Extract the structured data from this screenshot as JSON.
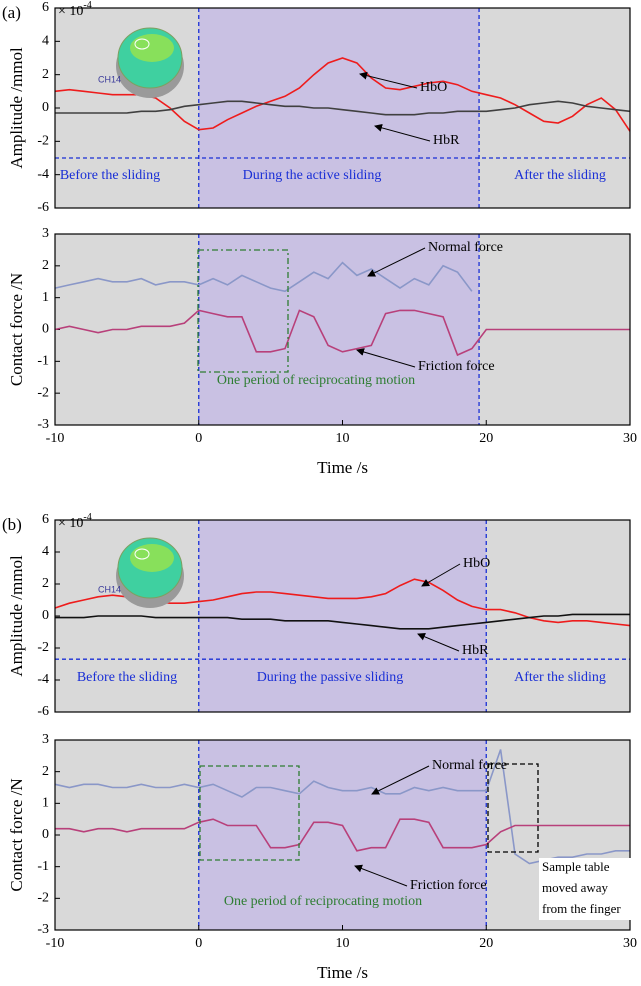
{
  "chart_data": [
    {
      "type": "line",
      "panel_label": "(a)",
      "ylabel": "Amplitude /mmol",
      "scale_label": "× 10",
      "scale_exponent": "-4",
      "channel_label": "CH14",
      "x": [
        -10,
        -9,
        -8,
        -7,
        -6,
        -5,
        -4,
        -3,
        -2,
        -1,
        0,
        1,
        2,
        3,
        4,
        5,
        6,
        7,
        8,
        9,
        10,
        11,
        12,
        13,
        14,
        15,
        16,
        17,
        18,
        19,
        20,
        21,
        22,
        23,
        24,
        25,
        26,
        27,
        28,
        29,
        30
      ],
      "xlim": [
        -10,
        30
      ],
      "ylim": [
        -6,
        6
      ],
      "yticks": [
        -6,
        -4,
        -2,
        0,
        2,
        4,
        6
      ],
      "markers": [
        0,
        19.5
      ],
      "threshold": -3,
      "region_labels": [
        "Before the sliding",
        "During the active sliding",
        "After the sliding"
      ],
      "series": [
        {
          "name": "HbO",
          "color": "#ee1c1c",
          "values": [
            1.0,
            1.1,
            1.0,
            0.9,
            0.8,
            0.8,
            0.8,
            0.6,
            0.0,
            -0.8,
            -1.3,
            -1.2,
            -0.7,
            -0.3,
            0.1,
            0.4,
            0.7,
            1.2,
            2.0,
            2.7,
            3.0,
            2.7,
            1.8,
            1.2,
            1.1,
            1.3,
            1.5,
            1.6,
            1.4,
            1.0,
            0.8,
            0.6,
            0.2,
            -0.3,
            -0.8,
            -0.9,
            -0.5,
            0.2,
            0.6,
            -0.1,
            -1.4
          ]
        },
        {
          "name": "HbR",
          "color": "#404040",
          "values": [
            -0.3,
            -0.3,
            -0.3,
            -0.3,
            -0.3,
            -0.3,
            -0.2,
            -0.2,
            -0.1,
            0.1,
            0.2,
            0.3,
            0.4,
            0.4,
            0.3,
            0.2,
            0.1,
            0.1,
            0.0,
            0.0,
            -0.1,
            -0.2,
            -0.3,
            -0.4,
            -0.4,
            -0.4,
            -0.3,
            -0.3,
            -0.2,
            -0.2,
            -0.2,
            -0.1,
            0.0,
            0.2,
            0.3,
            0.4,
            0.3,
            0.1,
            0.0,
            -0.1,
            -0.2
          ]
        }
      ]
    },
    {
      "type": "line",
      "ylabel": "Contact force /N",
      "xlabel": "Time /s",
      "x": [
        -10,
        -9,
        -8,
        -7,
        -6,
        -5,
        -4,
        -3,
        -2,
        -1,
        0,
        1,
        2,
        3,
        4,
        5,
        6,
        7,
        8,
        9,
        10,
        11,
        12,
        13,
        14,
        15,
        16,
        17,
        18,
        19,
        20,
        21,
        22,
        23,
        24,
        25,
        26,
        27,
        28,
        29,
        30
      ],
      "xlim": [
        -10,
        30
      ],
      "xticks": [
        -10,
        0,
        10,
        20,
        30
      ],
      "ylim": [
        -3,
        3
      ],
      "yticks": [
        -3,
        -2,
        -1,
        0,
        1,
        2,
        3
      ],
      "markers": [
        0,
        19.5
      ],
      "period_label": "One period of reciprocating motion",
      "series": [
        {
          "name": "Normal force",
          "color": "#8a97c8",
          "values": [
            1.3,
            1.4,
            1.5,
            1.6,
            1.5,
            1.5,
            1.6,
            1.4,
            1.5,
            1.5,
            1.4,
            1.6,
            1.4,
            1.7,
            1.5,
            1.3,
            1.2,
            1.5,
            1.8,
            1.6,
            2.1,
            1.7,
            1.9,
            1.6,
            1.3,
            1.6,
            1.4,
            2.0,
            1.8,
            1.2,
            null,
            null,
            null,
            null,
            null,
            null,
            null,
            null,
            null,
            null,
            null
          ]
        },
        {
          "name": "Friction force",
          "color": "#b8407a",
          "values": [
            0.0,
            0.1,
            0.0,
            -0.1,
            0.0,
            0.0,
            0.1,
            0.1,
            0.1,
            0.2,
            0.6,
            0.5,
            0.4,
            0.4,
            -0.7,
            -0.7,
            -0.6,
            0.6,
            0.4,
            -0.5,
            -0.7,
            -0.6,
            -0.5,
            0.5,
            0.6,
            0.6,
            0.5,
            0.4,
            -0.8,
            -0.6,
            0,
            0,
            0,
            0,
            0,
            0,
            0,
            0,
            0,
            0,
            0
          ]
        }
      ]
    },
    {
      "type": "line",
      "panel_label": "(b)",
      "ylabel": "Amplitude /mmol",
      "scale_label": "× 10",
      "scale_exponent": "-4",
      "channel_label": "CH14",
      "x": [
        -10,
        -9,
        -8,
        -7,
        -6,
        -5,
        -4,
        -3,
        -2,
        -1,
        0,
        1,
        2,
        3,
        4,
        5,
        6,
        7,
        8,
        9,
        10,
        11,
        12,
        13,
        14,
        15,
        16,
        17,
        18,
        19,
        20,
        21,
        22,
        23,
        24,
        25,
        26,
        27,
        28,
        29,
        30
      ],
      "xlim": [
        -10,
        30
      ],
      "ylim": [
        -6,
        6
      ],
      "yticks": [
        -6,
        -4,
        -2,
        0,
        2,
        4,
        6
      ],
      "markers": [
        0,
        20
      ],
      "threshold": -2.7,
      "region_labels": [
        "Before the sliding",
        "During the passive sliding",
        "After the sliding"
      ],
      "series": [
        {
          "name": "HbO",
          "color": "#ee1c1c",
          "values": [
            0.5,
            0.8,
            1.0,
            1.2,
            1.3,
            1.2,
            1.0,
            0.9,
            0.8,
            0.8,
            0.9,
            1.0,
            1.2,
            1.4,
            1.5,
            1.5,
            1.4,
            1.3,
            1.2,
            1.1,
            1.1,
            1.1,
            1.2,
            1.4,
            1.9,
            2.3,
            2.1,
            1.6,
            1.0,
            0.6,
            0.4,
            0.4,
            0.2,
            -0.1,
            -0.3,
            -0.4,
            -0.3,
            -0.3,
            -0.4,
            -0.5,
            -0.6
          ]
        },
        {
          "name": "HbR",
          "color": "#111111",
          "values": [
            -0.1,
            -0.1,
            -0.1,
            0.0,
            0.0,
            0.0,
            0.0,
            -0.1,
            -0.1,
            -0.1,
            -0.1,
            -0.1,
            -0.1,
            -0.2,
            -0.2,
            -0.2,
            -0.3,
            -0.3,
            -0.3,
            -0.3,
            -0.4,
            -0.5,
            -0.6,
            -0.7,
            -0.8,
            -0.8,
            -0.8,
            -0.7,
            -0.6,
            -0.5,
            -0.4,
            -0.3,
            -0.2,
            -0.1,
            0.0,
            0.0,
            0.1,
            0.1,
            0.1,
            0.1,
            0.1
          ]
        }
      ]
    },
    {
      "type": "line",
      "ylabel": "Contact force /N",
      "xlabel": "Time /s",
      "x": [
        -10,
        -9,
        -8,
        -7,
        -6,
        -5,
        -4,
        -3,
        -2,
        -1,
        0,
        1,
        2,
        3,
        4,
        5,
        6,
        7,
        8,
        9,
        10,
        11,
        12,
        13,
        14,
        15,
        16,
        17,
        18,
        19,
        20,
        21,
        22,
        23,
        24,
        25,
        26,
        27,
        28,
        29,
        30
      ],
      "xlim": [
        -10,
        30
      ],
      "xticks": [
        -10,
        0,
        10,
        20,
        30
      ],
      "ylim": [
        -3,
        3
      ],
      "yticks": [
        -3,
        -2,
        -1,
        0,
        1,
        2,
        3
      ],
      "markers": [
        0,
        20
      ],
      "period_label": "One period of reciprocating motion",
      "note_lines": [
        "Sample table",
        "moved away",
        "from the finger"
      ],
      "series": [
        {
          "name": "Normal force",
          "color": "#8a97c8",
          "values": [
            1.6,
            1.5,
            1.6,
            1.6,
            1.5,
            1.5,
            1.6,
            1.5,
            1.5,
            1.6,
            1.5,
            1.6,
            1.4,
            1.2,
            1.5,
            1.5,
            1.4,
            1.3,
            1.7,
            1.5,
            1.4,
            1.4,
            1.5,
            1.3,
            1.3,
            1.5,
            1.4,
            1.5,
            1.4,
            1.4,
            1.4,
            2.7,
            -0.6,
            -0.9,
            -0.8,
            -0.7,
            -0.7,
            -0.6,
            -0.6,
            -0.5,
            -0.5
          ]
        },
        {
          "name": "Friction force",
          "color": "#b8407a",
          "values": [
            0.2,
            0.2,
            0.1,
            0.2,
            0.2,
            0.1,
            0.2,
            0.2,
            0.2,
            0.2,
            0.4,
            0.5,
            0.3,
            0.3,
            0.3,
            -0.4,
            -0.4,
            -0.3,
            0.4,
            0.4,
            0.3,
            -0.5,
            -0.4,
            -0.4,
            0.5,
            0.5,
            0.4,
            -0.4,
            -0.4,
            -0.4,
            -0.3,
            0.1,
            0.3,
            0.3,
            0.3,
            0.3,
            0.3,
            0.3,
            0.3,
            0.3,
            0.3
          ]
        }
      ]
    }
  ]
}
